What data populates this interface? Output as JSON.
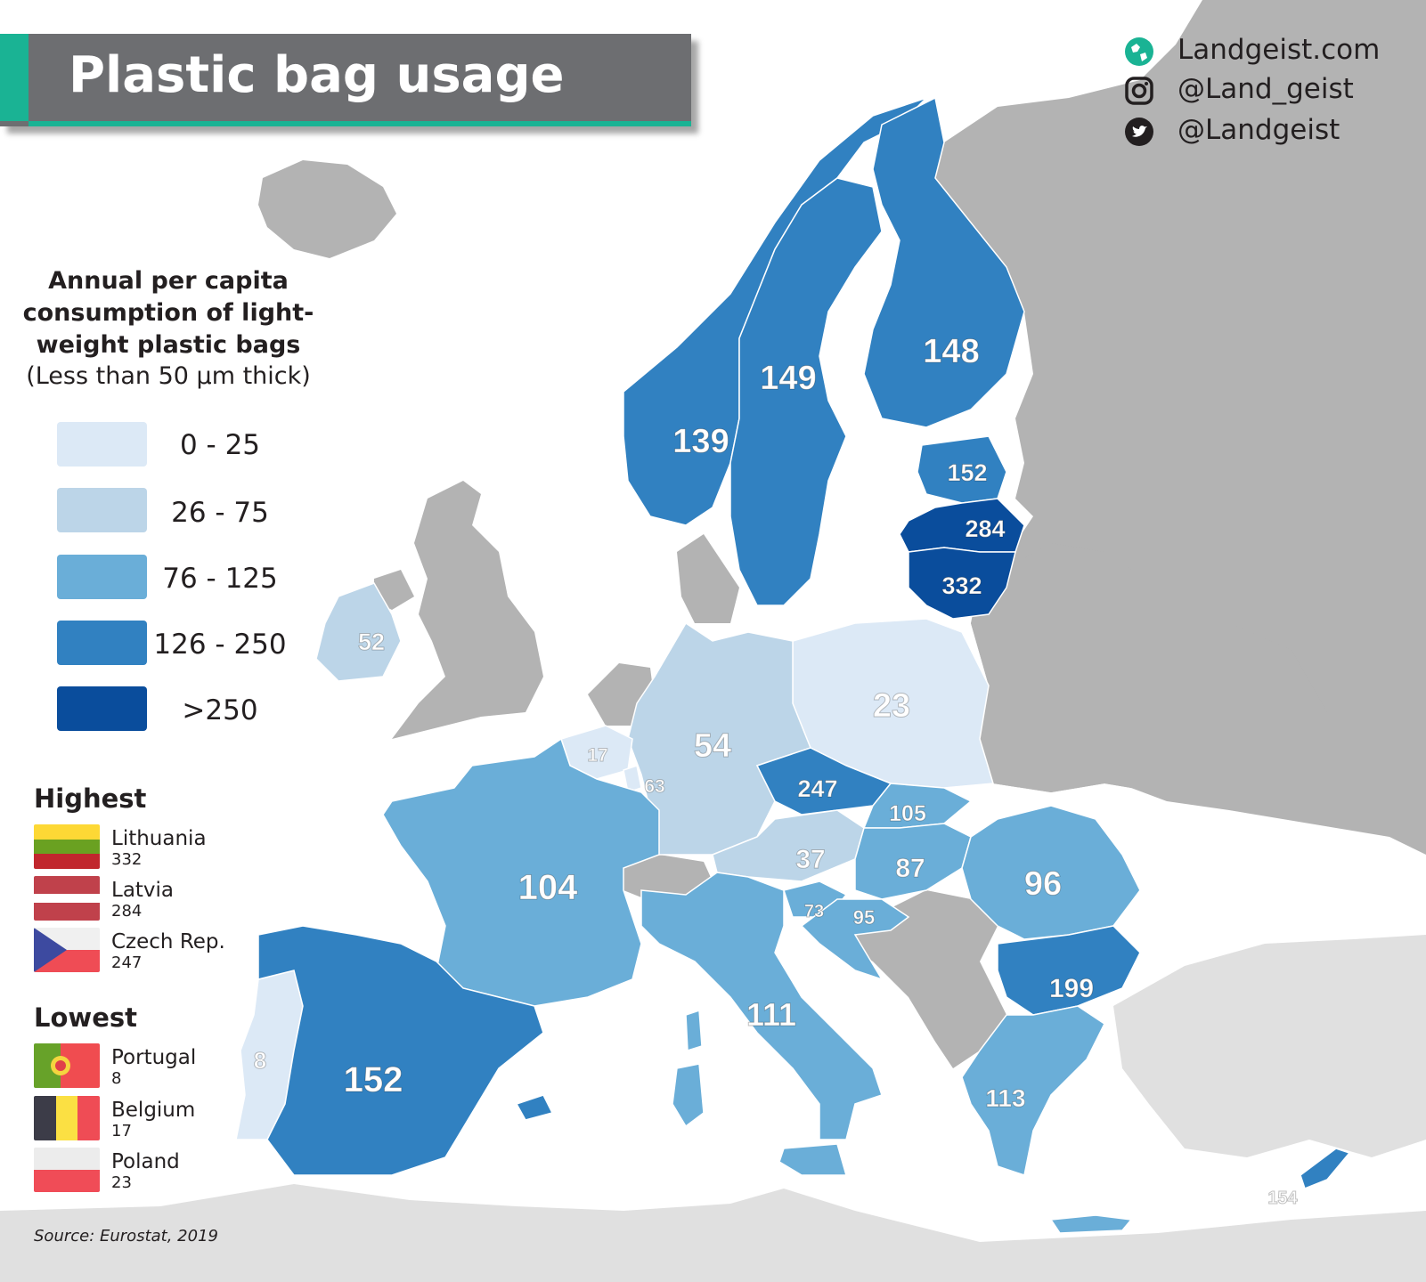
{
  "title": "Plastic bag usage",
  "social": [
    {
      "icon": "globe-icon",
      "text": "Landgeist.com"
    },
    {
      "icon": "instagram-icon",
      "text": "@Land_geist"
    },
    {
      "icon": "twitter-icon",
      "text": "@Landgeist"
    }
  ],
  "legend": {
    "title": "Annual per capita consumption of light-weight plastic bags",
    "subtitle": "(Less than 50 µm thick)",
    "classes": [
      {
        "label": "0  -  25",
        "color": "#dce9f6"
      },
      {
        "label": "26  -  75",
        "color": "#bcd5e8"
      },
      {
        "label": "76  - 125",
        "color": "#6aaed8"
      },
      {
        "label": "126 - 250",
        "color": "#3181c1"
      },
      {
        "label": ">250",
        "color": "#0a4d9c"
      }
    ]
  },
  "highest": {
    "heading": "Highest",
    "items": [
      {
        "country": "Lithuania",
        "value": "332",
        "flag": "lithuania-flag"
      },
      {
        "country": "Latvia",
        "value": "284",
        "flag": "latvia-flag"
      },
      {
        "country": "Czech Rep.",
        "value": "247",
        "flag": "czech-flag"
      }
    ]
  },
  "lowest": {
    "heading": "Lowest",
    "items": [
      {
        "country": "Portugal",
        "value": "8",
        "flag": "portugal-flag"
      },
      {
        "country": "Belgium",
        "value": "17",
        "flag": "belgium-flag"
      },
      {
        "country": "Poland",
        "value": "23",
        "flag": "poland-flag"
      }
    ]
  },
  "source": "Source: Eurostat, 2019",
  "colors": {
    "no_data": "#b3b3b3",
    "africa": "#e0e0e0",
    "sea": "#ffffff",
    "accent": "#1ab394"
  },
  "countries": [
    {
      "id": "norway",
      "value": "139"
    },
    {
      "id": "sweden",
      "value": "149"
    },
    {
      "id": "finland",
      "value": "148"
    },
    {
      "id": "estonia",
      "value": "152"
    },
    {
      "id": "latvia",
      "value": "284"
    },
    {
      "id": "lithuania",
      "value": "332"
    },
    {
      "id": "ireland",
      "value": "52"
    },
    {
      "id": "belgium",
      "value": "17"
    },
    {
      "id": "luxembourg",
      "value": "63"
    },
    {
      "id": "germany",
      "value": "54"
    },
    {
      "id": "poland",
      "value": "23"
    },
    {
      "id": "czechia",
      "value": "247"
    },
    {
      "id": "slovakia",
      "value": "105"
    },
    {
      "id": "austria",
      "value": "37"
    },
    {
      "id": "hungary",
      "value": "87"
    },
    {
      "id": "romania",
      "value": "96"
    },
    {
      "id": "france",
      "value": "104"
    },
    {
      "id": "slovenia",
      "value": "73"
    },
    {
      "id": "croatia",
      "value": "95"
    },
    {
      "id": "bulgaria",
      "value": "199"
    },
    {
      "id": "italy",
      "value": "111"
    },
    {
      "id": "portugal",
      "value": "8"
    },
    {
      "id": "spain",
      "value": "152"
    },
    {
      "id": "greece",
      "value": "113"
    },
    {
      "id": "cyprus",
      "value": "154"
    }
  ]
}
